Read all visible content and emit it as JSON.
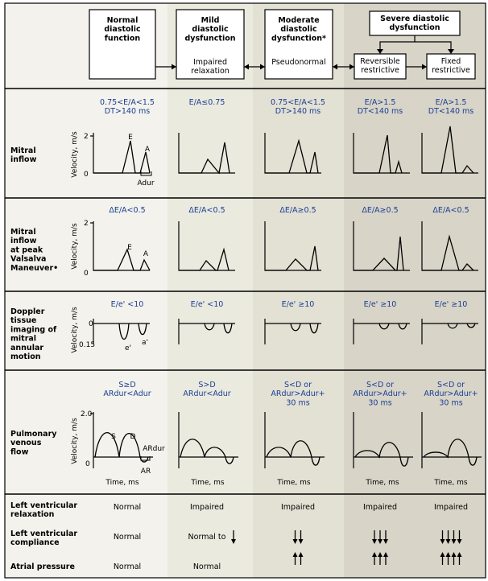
{
  "columns": [
    {
      "id": "normal",
      "title": "Normal\ndiastolic\nfunction",
      "subtitle": "",
      "color": "#f4f3ee"
    },
    {
      "id": "mild",
      "title": "Mild\ndiastolic\ndysfunction",
      "subtitle": "Impaired\nrelaxation",
      "color": "#ebeadf"
    },
    {
      "id": "moderate",
      "title": "Moderate\ndiastolic\ndysfunction*",
      "subtitle": "Pseudonormal",
      "color": "#e2dfd2"
    },
    {
      "id": "severe-rev",
      "title": "",
      "subtitle": "Reversible\nrestrictive",
      "color": "#d7d3c6"
    },
    {
      "id": "severe-fixed",
      "title": "",
      "subtitle": "Fixed\nrestrictive",
      "color": "#d7d3c6"
    }
  ],
  "severe_title": "Severe diastolic\ndysfunction",
  "rows": {
    "mitral_inflow": {
      "label": "Mitral\ninflow",
      "criteria": [
        "0.75<E/A<1.5\nDT>140 ms",
        "E/A≤0.75",
        "0.75<E/A<1.5\nDT>140 ms",
        "E/A>1.5\nDT<140 ms",
        "E/A>1.5\nDT<140 ms"
      ],
      "ylabel": "Velocity, m/s",
      "ymax": "2",
      "y0": "0",
      "labels": {
        "e": "E",
        "a": "A",
        "adur": "Adur"
      }
    },
    "valsalva": {
      "label": "Mitral\ninflow\nat peak\nValsalva\nManeuver•",
      "criteria": [
        "ΔE/A<0.5",
        "ΔE/A<0.5",
        "ΔE/A≥0.5",
        "ΔE/A≥0.5",
        "ΔE/A<0.5"
      ],
      "ylabel": "Velocity, m/s",
      "ymax": "2",
      "y0": "0",
      "labels": {
        "e": "E",
        "a": "A"
      }
    },
    "dti": {
      "label": "Doppler\ntissue\nimaging of\nmitral\nannular\nmotion",
      "criteria": [
        "E/e' <10",
        "E/e' <10",
        "E/e' ≥10",
        "E/e' ≥10",
        "E/e' ≥10"
      ],
      "ylabel": "Velocity, m/s",
      "y0": "0",
      "ymin": "0.15",
      "labels": {
        "e": "e'",
        "a": "a'"
      }
    },
    "pv": {
      "label": "Pulmonary\nvenous\nflow",
      "criteria": [
        "S≥D\nARdur<Adur",
        "S>D\nARdur<Adur",
        "S<D or\nARdur>Adur+\n30 ms",
        "S<D or\nARdur>Adur+\n30 ms",
        "S<D or\nARdur>Adur+\n30 ms"
      ],
      "ylabel": "Velocity, m/s",
      "ymax": "2.0",
      "y0": "0",
      "xlabel": "Time, ms",
      "labels": {
        "s": "S",
        "d": "D",
        "ardur": "ARdur",
        "ar": "AR"
      }
    },
    "bottom": [
      {
        "label": "Left ventricular\nrelaxation",
        "values": [
          "Normal",
          "Impaired",
          "Impaired",
          "Impaired",
          "Impaired"
        ]
      },
      {
        "label": "Left ventricular\ncompliance",
        "values": [
          "Normal",
          "Normal to",
          "",
          "",
          ""
        ],
        "arrows": [
          0,
          1,
          2,
          3,
          4
        ],
        "dir": "down"
      },
      {
        "label": "Atrial pressure",
        "values": [
          "Normal",
          "Normal",
          "",
          "",
          ""
        ],
        "arrows": [
          0,
          0,
          2,
          3,
          4
        ],
        "dir": "up"
      }
    ]
  }
}
